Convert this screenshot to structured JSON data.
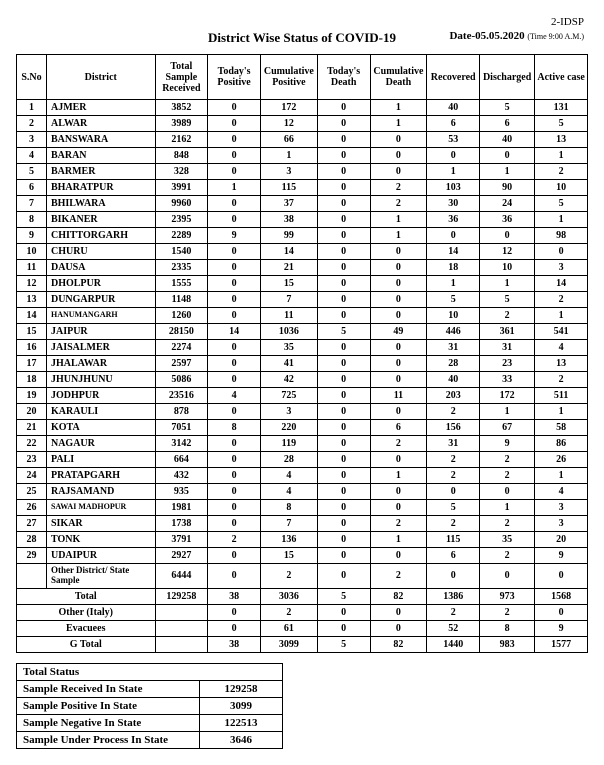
{
  "doc_id": "2-IDSP",
  "title": "District Wise Status of  COVID-19",
  "date_label": "Date-05.05.2020",
  "time_label": "(Time 9:00 A.M.)",
  "columns": [
    "S.No",
    "District",
    "Total Sample Received",
    "Today's Positive",
    "Cumulative Positive",
    "Today's Death",
    "Cumulative Death",
    "Recovered",
    "Discharged",
    "Active case"
  ],
  "rows": [
    {
      "sno": "1",
      "dist": "AJMER",
      "tsr": "3852",
      "tp": "0",
      "cp": "172",
      "td": "0",
      "cd": "1",
      "rec": "40",
      "dis": "5",
      "ac": "131"
    },
    {
      "sno": "2",
      "dist": "ALWAR",
      "tsr": "3989",
      "tp": "0",
      "cp": "12",
      "td": "0",
      "cd": "1",
      "rec": "6",
      "dis": "6",
      "ac": "5"
    },
    {
      "sno": "3",
      "dist": "BANSWARA",
      "tsr": "2162",
      "tp": "0",
      "cp": "66",
      "td": "0",
      "cd": "0",
      "rec": "53",
      "dis": "40",
      "ac": "13"
    },
    {
      "sno": "4",
      "dist": "BARAN",
      "tsr": "848",
      "tp": "0",
      "cp": "1",
      "td": "0",
      "cd": "0",
      "rec": "0",
      "dis": "0",
      "ac": "1"
    },
    {
      "sno": "5",
      "dist": "BARMER",
      "tsr": "328",
      "tp": "0",
      "cp": "3",
      "td": "0",
      "cd": "0",
      "rec": "1",
      "dis": "1",
      "ac": "2"
    },
    {
      "sno": "6",
      "dist": "BHARATPUR",
      "tsr": "3991",
      "tp": "1",
      "cp": "115",
      "td": "0",
      "cd": "2",
      "rec": "103",
      "dis": "90",
      "ac": "10"
    },
    {
      "sno": "7",
      "dist": "BHILWARA",
      "tsr": "9960",
      "tp": "0",
      "cp": "37",
      "td": "0",
      "cd": "2",
      "rec": "30",
      "dis": "24",
      "ac": "5"
    },
    {
      "sno": "8",
      "dist": "BIKANER",
      "tsr": "2395",
      "tp": "0",
      "cp": "38",
      "td": "0",
      "cd": "1",
      "rec": "36",
      "dis": "36",
      "ac": "1"
    },
    {
      "sno": "9",
      "dist": "CHITTORGARH",
      "tsr": "2289",
      "tp": "9",
      "cp": "99",
      "td": "0",
      "cd": "1",
      "rec": "0",
      "dis": "0",
      "ac": "98"
    },
    {
      "sno": "10",
      "dist": "CHURU",
      "tsr": "1540",
      "tp": "0",
      "cp": "14",
      "td": "0",
      "cd": "0",
      "rec": "14",
      "dis": "12",
      "ac": "0"
    },
    {
      "sno": "11",
      "dist": "DAUSA",
      "tsr": "2335",
      "tp": "0",
      "cp": "21",
      "td": "0",
      "cd": "0",
      "rec": "18",
      "dis": "10",
      "ac": "3"
    },
    {
      "sno": "12",
      "dist": "DHOLPUR",
      "tsr": "1555",
      "tp": "0",
      "cp": "15",
      "td": "0",
      "cd": "0",
      "rec": "1",
      "dis": "1",
      "ac": "14"
    },
    {
      "sno": "13",
      "dist": "DUNGARPUR",
      "tsr": "1148",
      "tp": "0",
      "cp": "7",
      "td": "0",
      "cd": "0",
      "rec": "5",
      "dis": "5",
      "ac": "2"
    },
    {
      "sno": "14",
      "dist": "HANUMANGARH",
      "tsr": "1260",
      "tp": "0",
      "cp": "11",
      "td": "0",
      "cd": "0",
      "rec": "10",
      "dis": "2",
      "ac": "1"
    },
    {
      "sno": "15",
      "dist": "JAIPUR",
      "tsr": "28150",
      "tp": "14",
      "cp": "1036",
      "td": "5",
      "cd": "49",
      "rec": "446",
      "dis": "361",
      "ac": "541"
    },
    {
      "sno": "16",
      "dist": "JAISALMER",
      "tsr": "2274",
      "tp": "0",
      "cp": "35",
      "td": "0",
      "cd": "0",
      "rec": "31",
      "dis": "31",
      "ac": "4"
    },
    {
      "sno": "17",
      "dist": "JHALAWAR",
      "tsr": "2597",
      "tp": "0",
      "cp": "41",
      "td": "0",
      "cd": "0",
      "rec": "28",
      "dis": "23",
      "ac": "13"
    },
    {
      "sno": "18",
      "dist": "JHUNJHUNU",
      "tsr": "5086",
      "tp": "0",
      "cp": "42",
      "td": "0",
      "cd": "0",
      "rec": "40",
      "dis": "33",
      "ac": "2"
    },
    {
      "sno": "19",
      "dist": "JODHPUR",
      "tsr": "23516",
      "tp": "4",
      "cp": "725",
      "td": "0",
      "cd": "11",
      "rec": "203",
      "dis": "172",
      "ac": "511"
    },
    {
      "sno": "20",
      "dist": "KARAULI",
      "tsr": "878",
      "tp": "0",
      "cp": "3",
      "td": "0",
      "cd": "0",
      "rec": "2",
      "dis": "1",
      "ac": "1"
    },
    {
      "sno": "21",
      "dist": "KOTA",
      "tsr": "7051",
      "tp": "8",
      "cp": "220",
      "td": "0",
      "cd": "6",
      "rec": "156",
      "dis": "67",
      "ac": "58"
    },
    {
      "sno": "22",
      "dist": "NAGAUR",
      "tsr": "3142",
      "tp": "0",
      "cp": "119",
      "td": "0",
      "cd": "2",
      "rec": "31",
      "dis": "9",
      "ac": "86"
    },
    {
      "sno": "23",
      "dist": "PALI",
      "tsr": "664",
      "tp": "0",
      "cp": "28",
      "td": "0",
      "cd": "0",
      "rec": "2",
      "dis": "2",
      "ac": "26"
    },
    {
      "sno": "24",
      "dist": "PRATAPGARH",
      "tsr": "432",
      "tp": "0",
      "cp": "4",
      "td": "0",
      "cd": "1",
      "rec": "2",
      "dis": "2",
      "ac": "1"
    },
    {
      "sno": "25",
      "dist": "RAJSAMAND",
      "tsr": "935",
      "tp": "0",
      "cp": "4",
      "td": "0",
      "cd": "0",
      "rec": "0",
      "dis": "0",
      "ac": "4"
    },
    {
      "sno": "26",
      "dist": "SAWAI MADHOPUR",
      "tsr": "1981",
      "tp": "0",
      "cp": "8",
      "td": "0",
      "cd": "0",
      "rec": "5",
      "dis": "1",
      "ac": "3"
    },
    {
      "sno": "27",
      "dist": "SIKAR",
      "tsr": "1738",
      "tp": "0",
      "cp": "7",
      "td": "0",
      "cd": "2",
      "rec": "2",
      "dis": "2",
      "ac": "3"
    },
    {
      "sno": "28",
      "dist": "TONK",
      "tsr": "3791",
      "tp": "2",
      "cp": "136",
      "td": "0",
      "cd": "1",
      "rec": "115",
      "dis": "35",
      "ac": "20"
    },
    {
      "sno": "29",
      "dist": "UDAIPUR",
      "tsr": "2927",
      "tp": "0",
      "cp": "15",
      "td": "0",
      "cd": "0",
      "rec": "6",
      "dis": "2",
      "ac": "9"
    }
  ],
  "other_sample": {
    "dist": "Other District/ State Sample",
    "tsr": "6444",
    "tp": "0",
    "cp": "2",
    "td": "0",
    "cd": "2",
    "rec": "0",
    "dis": "0",
    "ac": "0"
  },
  "total_row": {
    "label": "Total",
    "tsr": "129258",
    "tp": "38",
    "cp": "3036",
    "td": "5",
    "cd": "82",
    "rec": "1386",
    "dis": "973",
    "ac": "1568"
  },
  "italy_row": {
    "label": "Other (Italy)",
    "tp": "0",
    "cp": "2",
    "td": "0",
    "cd": "0",
    "rec": "2",
    "dis": "2",
    "ac": "0"
  },
  "evac_row": {
    "label": "Evacuees",
    "tp": "0",
    "cp": "61",
    "td": "0",
    "cd": "0",
    "rec": "52",
    "dis": "8",
    "ac": "9"
  },
  "gtotal_row": {
    "label": "G Total",
    "tp": "38",
    "cp": "3099",
    "td": "5",
    "cd": "82",
    "rec": "1440",
    "dis": "983",
    "ac": "1577"
  },
  "status": {
    "header": "Total Status",
    "rows": [
      {
        "label": "Sample Received In State",
        "val": "129258"
      },
      {
        "label": "Sample Positive In State",
        "val": "3099"
      },
      {
        "label": "Sample Negative In State",
        "val": "122513"
      },
      {
        "label": "Sample Under Process In State",
        "val": "3646"
      }
    ]
  }
}
